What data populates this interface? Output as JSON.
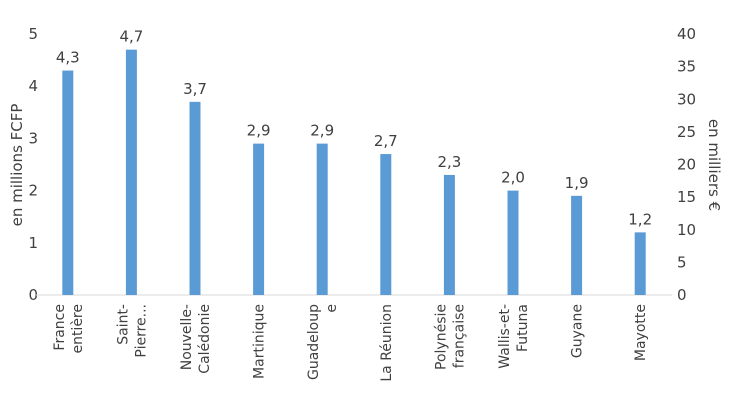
{
  "chart_data": {
    "type": "bar",
    "categories": [
      [
        "France",
        "entière"
      ],
      [
        "Saint-",
        "Pierre..."
      ],
      [
        "Nouvelle-",
        "Calédonie"
      ],
      [
        "Martinique"
      ],
      [
        "Guadeloup",
        "e"
      ],
      [
        "La Réunion"
      ],
      [
        "Polynésie",
        "française"
      ],
      [
        "Wallis-et-",
        "Futuna"
      ],
      [
        "Guyane"
      ],
      [
        "Mayotte"
      ]
    ],
    "values": [
      4.3,
      4.7,
      3.7,
      2.9,
      2.9,
      2.7,
      2.3,
      2.0,
      1.9,
      1.2
    ],
    "data_labels": [
      "4,3",
      "4,7",
      "3,7",
      "2,9",
      "2,9",
      "2,7",
      "2,3",
      "2,0",
      "1,9",
      "1,2"
    ],
    "secondary_values": [
      36.2,
      39.6,
      31.1,
      24.4,
      24.0,
      22.4,
      19.3,
      16.4,
      15.6,
      9.7
    ],
    "ylabel": "en millions FCFP",
    "y2label": "en milliers €",
    "ylim": [
      0,
      5
    ],
    "y2lim": [
      0,
      40
    ],
    "yticks": [
      "0",
      "1",
      "2",
      "3",
      "4",
      "5"
    ],
    "y2ticks": [
      "0",
      "5",
      "10",
      "15",
      "20",
      "25",
      "30",
      "35",
      "40"
    ],
    "grid": false,
    "legend": "none",
    "bar_color": "#5b9bd5"
  }
}
